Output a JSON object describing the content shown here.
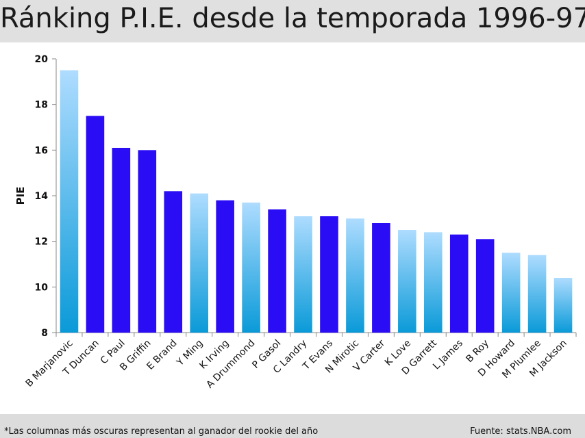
{
  "title": "Ránking P.I.E. desde la temporada 1996-97",
  "footnote": "*Las columnas más oscuras representan al ganador del rookie del año",
  "source": "Fuente: stats.NBA.com",
  "colors": {
    "rookie_of_year": "#2a0cf5",
    "other_light": "#aedcff",
    "other_dark": "#0a9ad8"
  },
  "chart_data": {
    "type": "bar",
    "title": "",
    "xlabel": "",
    "ylabel": "PIE",
    "ylim": [
      8,
      20
    ],
    "yticks": [
      8,
      10,
      12,
      14,
      16,
      18,
      20
    ],
    "grid": false,
    "categories": [
      "B Marjanovic",
      "T Duncan",
      "C Paul",
      "B Griffin",
      "E Brand",
      "Y Ming",
      "K Irving",
      "A Drummond",
      "P Gasol",
      "C Landry",
      "T Evans",
      "N Mirotic",
      "V Carter",
      "K Love",
      "D Garrett",
      "L James",
      "B Roy",
      "D Howard",
      "M Plumlee",
      "M Jackson"
    ],
    "values": [
      19.5,
      17.5,
      16.1,
      16.0,
      14.2,
      14.1,
      13.8,
      13.7,
      13.4,
      13.1,
      13.1,
      13.0,
      12.8,
      12.5,
      12.4,
      12.3,
      12.1,
      11.5,
      11.4,
      10.4
    ],
    "rookie_of_year": [
      false,
      true,
      true,
      true,
      true,
      false,
      true,
      false,
      true,
      false,
      true,
      false,
      true,
      false,
      false,
      true,
      true,
      false,
      false,
      false
    ]
  }
}
